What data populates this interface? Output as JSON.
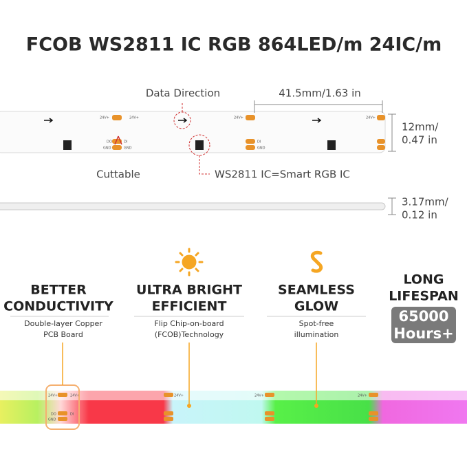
{
  "title": "FCOB WS2811 IC RGB 864LED/m 24IC/m",
  "top_diagram": {
    "data_direction": "Data Direction",
    "segment_length": "41.5mm/1.63 in",
    "width": [
      "12mm/",
      "0.47 in"
    ],
    "cuttable": "Cuttable",
    "ic": "WS2811 IC=Smart RGB IC",
    "thickness": [
      "3.17mm/",
      "0.12 in"
    ]
  },
  "pcb_labels": [
    "24V+",
    "DI",
    "DO",
    "GND"
  ],
  "features": [
    {
      "heading": [
        "BETTER",
        "CONDUCTIVITY"
      ],
      "text": [
        "Double-layer Copper",
        "PCB Board"
      ]
    },
    {
      "heading": [
        "ULTRA BRIGHT",
        "EFFICIENT"
      ],
      "text": [
        "Flip Chip-on-board",
        "(FCOB)Technology"
      ]
    },
    {
      "heading": [
        "SEAMLESS",
        "GLOW"
      ],
      "text": [
        "Spot-free",
        "illumination"
      ]
    },
    {
      "heading": [
        "LONG",
        "LIFESPAN"
      ],
      "badge": [
        "65000",
        "Hours+"
      ]
    }
  ]
}
